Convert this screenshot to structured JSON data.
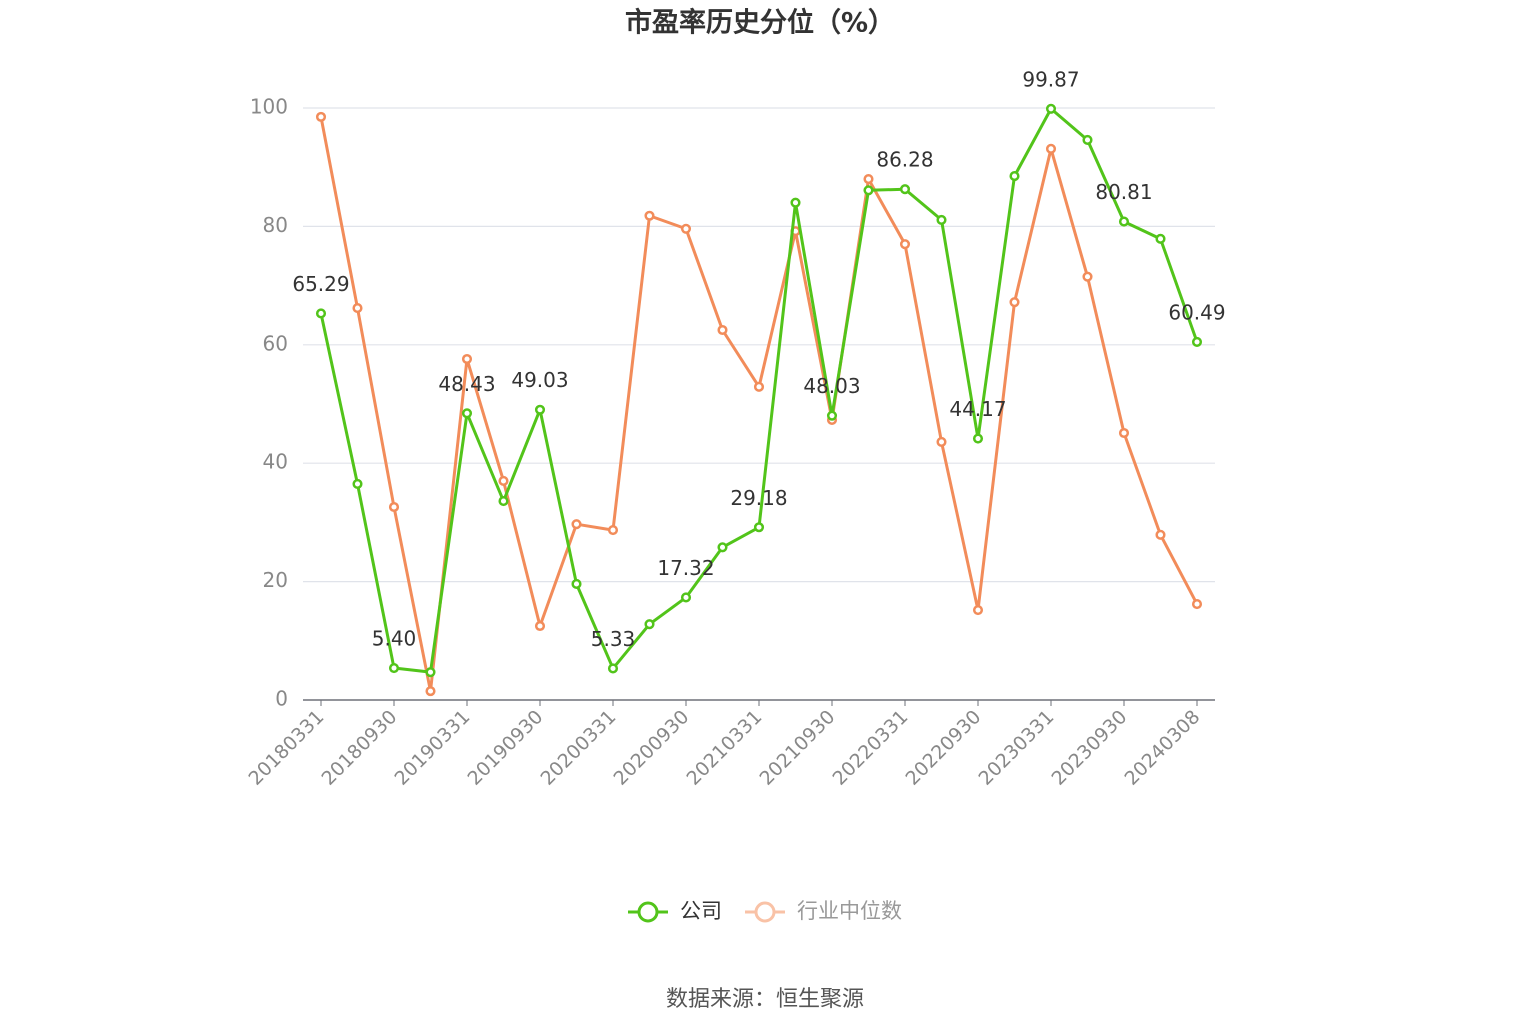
{
  "chart_data": {
    "type": "line",
    "title": "市盈率历史分位（%）",
    "source": "数据来源：恒生聚源",
    "categories": [
      "20180331",
      null,
      "20180930",
      null,
      "20190331",
      null,
      "20190930",
      null,
      "20200331",
      null,
      "20200930",
      null,
      "20210331",
      null,
      "20210930",
      null,
      "20220331",
      null,
      "20220930",
      null,
      "20230331",
      null,
      "20230930",
      null,
      "20240308"
    ],
    "series": [
      {
        "name": "公司",
        "color": "#52c41a",
        "values": [
          65.29,
          36.5,
          5.4,
          4.7,
          48.43,
          33.6,
          49.03,
          19.6,
          5.33,
          12.8,
          17.32,
          25.8,
          29.18,
          84.0,
          48.03,
          86.1,
          86.28,
          81.1,
          44.17,
          88.5,
          99.87,
          94.6,
          80.81,
          77.9,
          60.49
        ],
        "value_labels": [
          "65.29",
          null,
          "5.40",
          null,
          "48.43",
          null,
          "49.03",
          null,
          "5.33",
          null,
          "17.32",
          null,
          "29.18",
          null,
          "48.03",
          null,
          "86.28",
          null,
          "44.17",
          null,
          "99.87",
          null,
          "80.81",
          null,
          "60.49"
        ]
      },
      {
        "name": "行业中位数",
        "color": "#f28c5a",
        "values": [
          98.5,
          66.2,
          32.6,
          1.5,
          57.6,
          37.0,
          12.5,
          29.7,
          28.7,
          81.8,
          79.6,
          62.5,
          52.9,
          79.2,
          47.3,
          88.0,
          77.0,
          43.6,
          15.2,
          67.2,
          93.1,
          71.5,
          45.1,
          27.9,
          16.2
        ]
      }
    ],
    "ylim": [
      0,
      100
    ],
    "yticks": [
      0,
      20,
      40,
      60,
      80,
      100
    ],
    "grid": true
  }
}
